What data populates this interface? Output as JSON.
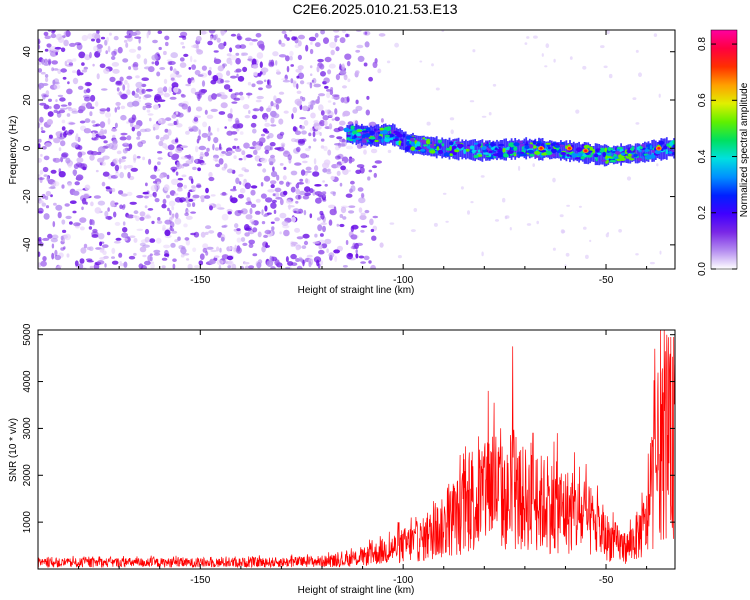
{
  "title": "C2E6.2025.010.21.53.E13",
  "chart_data": [
    {
      "type": "heatmap",
      "title": "C2E6.2025.010.21.53.E13",
      "xlabel": "Height of straight line (km)",
      "ylabel": "Frequency (Hz)",
      "xlim": [
        -190,
        -33
      ],
      "ylim": [
        -50,
        49
      ],
      "x_ticks": [
        -150,
        -100,
        -50
      ],
      "y_ticks": [
        -40,
        -20,
        0,
        20,
        40
      ],
      "grid": false,
      "signal_band": {
        "x_start": -114,
        "x_end": -33,
        "frequency_profile": [
          {
            "x": -113,
            "f": 6
          },
          {
            "x": -108,
            "f": 5
          },
          {
            "x": -103,
            "f": 6
          },
          {
            "x": -99,
            "f": 2
          },
          {
            "x": -90,
            "f": 0
          },
          {
            "x": -80,
            "f": -1
          },
          {
            "x": -70,
            "f": 0
          },
          {
            "x": -60,
            "f": -1
          },
          {
            "x": -50,
            "f": -3
          },
          {
            "x": -42,
            "f": -2
          },
          {
            "x": -35,
            "f": 0
          }
        ],
        "peak_points": [
          {
            "x": -66,
            "f": 0
          },
          {
            "x": -59,
            "f": 0
          },
          {
            "x": -55,
            "f": -1
          },
          {
            "x": -37,
            "f": 0
          }
        ]
      },
      "noise_region": {
        "x_start": -190,
        "x_end": -105
      },
      "colorbar": {
        "label": "Normalized spectral amplitude",
        "range": [
          0.0,
          0.85
        ],
        "ticks": [
          "0.0",
          "0.2",
          "0.4",
          "0.6",
          "0.8"
        ],
        "colors": [
          "#ffffff",
          "#b48cf0",
          "#7a28e6",
          "#4000ff",
          "#0020ff",
          "#0090ff",
          "#00e0e0",
          "#00e060",
          "#60f000",
          "#e0f000",
          "#ffa000",
          "#ff3000",
          "#ff0040",
          "#ff00a0"
        ]
      }
    },
    {
      "type": "line",
      "xlabel": "Height of straight line (km)",
      "ylabel": "SNR (10 * v/v)",
      "xlim": [
        -190,
        -33
      ],
      "ylim": [
        0,
        5100
      ],
      "x_ticks": [
        -150,
        -100,
        -50
      ],
      "y_ticks": [
        1000,
        2000,
        3000,
        4000,
        5000
      ],
      "grid": false,
      "line_color": "#ff0000",
      "envelope": [
        {
          "x": -190,
          "y": 200
        },
        {
          "x": -170,
          "y": 220
        },
        {
          "x": -150,
          "y": 210
        },
        {
          "x": -130,
          "y": 230
        },
        {
          "x": -115,
          "y": 280
        },
        {
          "x": -110,
          "y": 400
        },
        {
          "x": -105,
          "y": 600
        },
        {
          "x": -100,
          "y": 800
        },
        {
          "x": -95,
          "y": 1000
        },
        {
          "x": -90,
          "y": 1400
        },
        {
          "x": -85,
          "y": 2000
        },
        {
          "x": -80,
          "y": 2400
        },
        {
          "x": -78,
          "y": 3000
        },
        {
          "x": -75,
          "y": 2300
        },
        {
          "x": -70,
          "y": 2400
        },
        {
          "x": -65,
          "y": 2200
        },
        {
          "x": -60,
          "y": 2000
        },
        {
          "x": -55,
          "y": 1700
        },
        {
          "x": -50,
          "y": 1100
        },
        {
          "x": -45,
          "y": 700
        },
        {
          "x": -40,
          "y": 1500
        },
        {
          "x": -37,
          "y": 4000
        },
        {
          "x": -34,
          "y": 4200
        }
      ],
      "spikes": [
        {
          "x": -98,
          "y": 1100
        },
        {
          "x": -83,
          "y": 2500
        },
        {
          "x": -79,
          "y": 3800
        },
        {
          "x": -73,
          "y": 4750
        },
        {
          "x": -68,
          "y": 2900
        },
        {
          "x": -62,
          "y": 2900
        },
        {
          "x": -38,
          "y": 4700
        },
        {
          "x": -35,
          "y": 5000
        },
        {
          "x": -34,
          "y": 4950
        }
      ]
    }
  ]
}
